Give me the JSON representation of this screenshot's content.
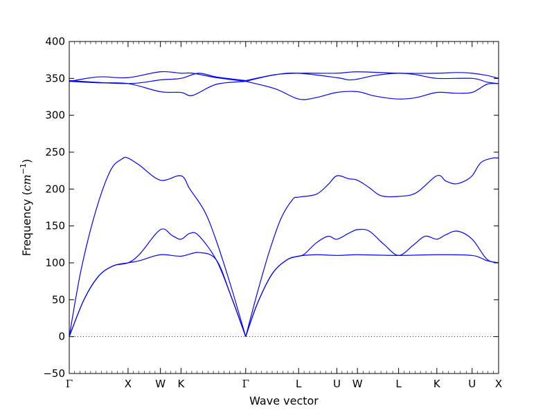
{
  "chart_data": {
    "type": "line",
    "xlabel": "Wave vector",
    "ylabel_main": "Frequency (",
    "ylabel_unit_base": "cm",
    "ylabel_unit_exp": "−1",
    "ylabel_close": ")",
    "ylim": [
      -50,
      400
    ],
    "yticks": [
      -50,
      0,
      50,
      100,
      150,
      200,
      250,
      300,
      350,
      400
    ],
    "xlim": [
      0,
      7.3
    ],
    "zero_line": true,
    "grid": false,
    "line_color": "#0000ff",
    "high_points": [
      {
        "x": 0.0,
        "label": "Γ"
      },
      {
        "x": 1.0,
        "label": "X"
      },
      {
        "x": 1.55,
        "label": "W"
      },
      {
        "x": 1.9,
        "label": "K"
      },
      {
        "x": 3.0,
        "label": "Γ"
      },
      {
        "x": 3.9,
        "label": "L"
      },
      {
        "x": 4.55,
        "label": "U"
      },
      {
        "x": 4.9,
        "label": "W"
      },
      {
        "x": 5.6,
        "label": "L"
      },
      {
        "x": 6.25,
        "label": "K"
      },
      {
        "x": 6.85,
        "label": "U"
      },
      {
        "x": 7.3,
        "label": "X"
      }
    ],
    "series": [
      {
        "points": [
          [
            0,
            0
          ],
          [
            0.25,
            50
          ],
          [
            0.5,
            82
          ],
          [
            0.75,
            96
          ],
          [
            1.0,
            100
          ],
          [
            1.2,
            103
          ],
          [
            1.55,
            111
          ],
          [
            1.9,
            109
          ],
          [
            2.2,
            114
          ],
          [
            2.5,
            104
          ],
          [
            2.75,
            55
          ],
          [
            3.0,
            0
          ]
        ]
      },
      {
        "points": [
          [
            0,
            0
          ],
          [
            0.25,
            50
          ],
          [
            0.5,
            82
          ],
          [
            0.75,
            96
          ],
          [
            1.0,
            100
          ],
          [
            1.2,
            112
          ],
          [
            1.55,
            145
          ],
          [
            1.75,
            137
          ],
          [
            1.9,
            132
          ],
          [
            2.05,
            140
          ],
          [
            2.2,
            137
          ],
          [
            2.5,
            104
          ],
          [
            2.75,
            55
          ],
          [
            3.0,
            0
          ]
        ]
      },
      {
        "points": [
          [
            0,
            0
          ],
          [
            0.2,
            90
          ],
          [
            0.45,
            170
          ],
          [
            0.7,
            225
          ],
          [
            0.9,
            241
          ],
          [
            1.0,
            242
          ],
          [
            1.2,
            232
          ],
          [
            1.55,
            212
          ],
          [
            1.9,
            218
          ],
          [
            2.05,
            200
          ],
          [
            2.3,
            170
          ],
          [
            2.5,
            130
          ],
          [
            2.75,
            68
          ],
          [
            3.0,
            0
          ]
        ]
      },
      {
        "points": [
          [
            0,
            346
          ],
          [
            0.5,
            344
          ],
          [
            1.0,
            343
          ],
          [
            1.55,
            332
          ],
          [
            1.9,
            331
          ],
          [
            2.1,
            327
          ],
          [
            2.5,
            342
          ],
          [
            3.0,
            346
          ]
        ]
      },
      {
        "points": [
          [
            0,
            346
          ],
          [
            0.5,
            352
          ],
          [
            1.0,
            351
          ],
          [
            1.55,
            359
          ],
          [
            1.9,
            357
          ],
          [
            2.1,
            357
          ],
          [
            2.5,
            351
          ],
          [
            3.0,
            346
          ]
        ]
      },
      {
        "points": [
          [
            0,
            347
          ],
          [
            1.0,
            343
          ],
          [
            1.55,
            348
          ],
          [
            1.9,
            350
          ],
          [
            2.2,
            357
          ],
          [
            2.5,
            352
          ],
          [
            3.0,
            347
          ]
        ]
      },
      {
        "points": [
          [
            3.0,
            0
          ],
          [
            3.2,
            45
          ],
          [
            3.45,
            85
          ],
          [
            3.7,
            104
          ],
          [
            3.9,
            109
          ],
          [
            4.2,
            111
          ],
          [
            4.55,
            110
          ],
          [
            4.9,
            111
          ],
          [
            5.6,
            110
          ],
          [
            6.25,
            111
          ],
          [
            6.85,
            110
          ],
          [
            7.1,
            103
          ],
          [
            7.3,
            100
          ]
        ]
      },
      {
        "points": [
          [
            3.0,
            0
          ],
          [
            3.2,
            45
          ],
          [
            3.45,
            85
          ],
          [
            3.7,
            104
          ],
          [
            3.9,
            109
          ],
          [
            4.0,
            112
          ],
          [
            4.2,
            127
          ],
          [
            4.4,
            136
          ],
          [
            4.55,
            132
          ],
          [
            4.75,
            140
          ],
          [
            4.9,
            145
          ],
          [
            5.1,
            143
          ],
          [
            5.35,
            125
          ],
          [
            5.6,
            110
          ],
          [
            5.85,
            124
          ],
          [
            6.05,
            136
          ],
          [
            6.25,
            132
          ],
          [
            6.4,
            138
          ],
          [
            6.6,
            143
          ],
          [
            6.85,
            132
          ],
          [
            7.1,
            105
          ],
          [
            7.3,
            100
          ]
        ]
      },
      {
        "points": [
          [
            3.0,
            0
          ],
          [
            3.2,
            60
          ],
          [
            3.4,
            115
          ],
          [
            3.6,
            160
          ],
          [
            3.8,
            186
          ],
          [
            3.9,
            189
          ],
          [
            4.2,
            193
          ],
          [
            4.4,
            206
          ],
          [
            4.55,
            218
          ],
          [
            4.75,
            214
          ],
          [
            4.9,
            212
          ],
          [
            5.1,
            202
          ],
          [
            5.3,
            191
          ],
          [
            5.6,
            190
          ],
          [
            5.9,
            195
          ],
          [
            6.25,
            218
          ],
          [
            6.4,
            211
          ],
          [
            6.55,
            207
          ],
          [
            6.7,
            210
          ],
          [
            6.85,
            218
          ],
          [
            7.0,
            236
          ],
          [
            7.2,
            242
          ],
          [
            7.3,
            242
          ]
        ]
      },
      {
        "points": [
          [
            3.0,
            346
          ],
          [
            3.5,
            336
          ],
          [
            3.9,
            322
          ],
          [
            4.2,
            324
          ],
          [
            4.55,
            331
          ],
          [
            4.9,
            332
          ],
          [
            5.2,
            326
          ],
          [
            5.6,
            322
          ],
          [
            5.9,
            324
          ],
          [
            6.25,
            331
          ],
          [
            6.55,
            330
          ],
          [
            6.85,
            331
          ],
          [
            7.1,
            342
          ],
          [
            7.3,
            343
          ]
        ]
      },
      {
        "points": [
          [
            3.0,
            346
          ],
          [
            3.5,
            355
          ],
          [
            3.9,
            357
          ],
          [
            4.55,
            351
          ],
          [
            4.75,
            348
          ],
          [
            4.9,
            349
          ],
          [
            5.2,
            354
          ],
          [
            5.6,
            357
          ],
          [
            5.9,
            355
          ],
          [
            6.25,
            350
          ],
          [
            6.85,
            350
          ],
          [
            7.1,
            345
          ],
          [
            7.3,
            343
          ]
        ]
      },
      {
        "points": [
          [
            3.0,
            347
          ],
          [
            3.5,
            355
          ],
          [
            3.9,
            357
          ],
          [
            4.55,
            357
          ],
          [
            4.9,
            359
          ],
          [
            5.6,
            357
          ],
          [
            6.25,
            357
          ],
          [
            6.6,
            358
          ],
          [
            6.85,
            357
          ],
          [
            7.1,
            354
          ],
          [
            7.3,
            350
          ]
        ]
      }
    ]
  }
}
